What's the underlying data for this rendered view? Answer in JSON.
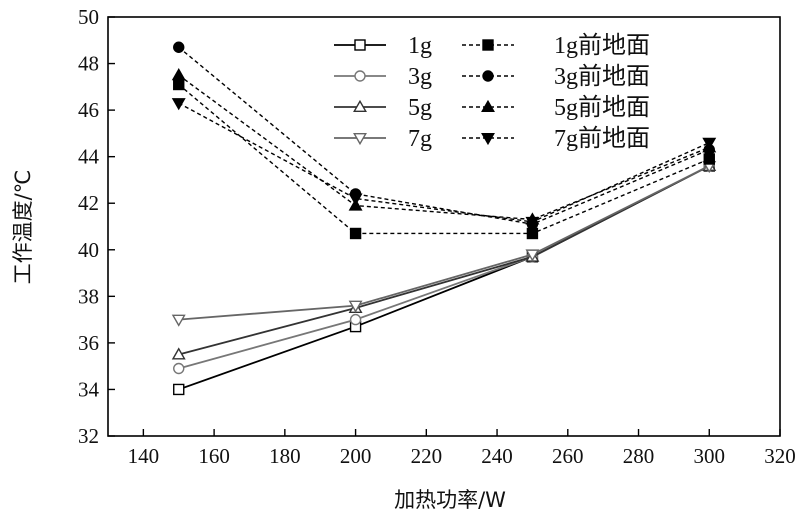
{
  "chart_data": {
    "type": "line",
    "xlabel": "加热功率/W",
    "ylabel": "工作温度/℃",
    "xlim": [
      130,
      320
    ],
    "ylim": [
      32,
      50
    ],
    "xticks": [
      140,
      160,
      180,
      200,
      220,
      240,
      260,
      280,
      300,
      320
    ],
    "yticks": [
      32,
      34,
      36,
      38,
      40,
      42,
      44,
      46,
      48,
      50
    ],
    "grid": false,
    "legend_position": "top-right",
    "x": [
      150,
      200,
      250,
      300
    ],
    "series": [
      {
        "name": "1g",
        "values": [
          34.0,
          36.7,
          39.7,
          43.6
        ],
        "color": "#000000",
        "marker": "square",
        "filled": false,
        "dashed": false
      },
      {
        "name": "3g",
        "values": [
          34.9,
          37.0,
          39.7,
          43.6
        ],
        "color": "#777777",
        "marker": "circle",
        "filled": false,
        "dashed": false
      },
      {
        "name": "5g",
        "values": [
          35.5,
          37.5,
          39.7,
          43.6
        ],
        "color": "#333333",
        "marker": "triangle-up",
        "filled": false,
        "dashed": false
      },
      {
        "name": "7g",
        "values": [
          37.0,
          37.6,
          39.8,
          43.6
        ],
        "color": "#666666",
        "marker": "triangle-down",
        "filled": false,
        "dashed": false
      },
      {
        "name": "1g前地面",
        "values": [
          47.1,
          40.7,
          40.7,
          43.9
        ],
        "color": "#000000",
        "marker": "square",
        "filled": true,
        "dashed": true
      },
      {
        "name": "3g前地面",
        "values": [
          48.7,
          42.4,
          41.1,
          44.3
        ],
        "color": "#000000",
        "marker": "circle",
        "filled": true,
        "dashed": true
      },
      {
        "name": "5g前地面",
        "values": [
          47.5,
          41.9,
          41.3,
          44.4
        ],
        "color": "#000000",
        "marker": "triangle-up",
        "filled": true,
        "dashed": true
      },
      {
        "name": "7g前地面",
        "values": [
          46.3,
          42.2,
          41.2,
          44.6
        ],
        "color": "#000000",
        "marker": "triangle-down",
        "filled": true,
        "dashed": true
      }
    ]
  }
}
